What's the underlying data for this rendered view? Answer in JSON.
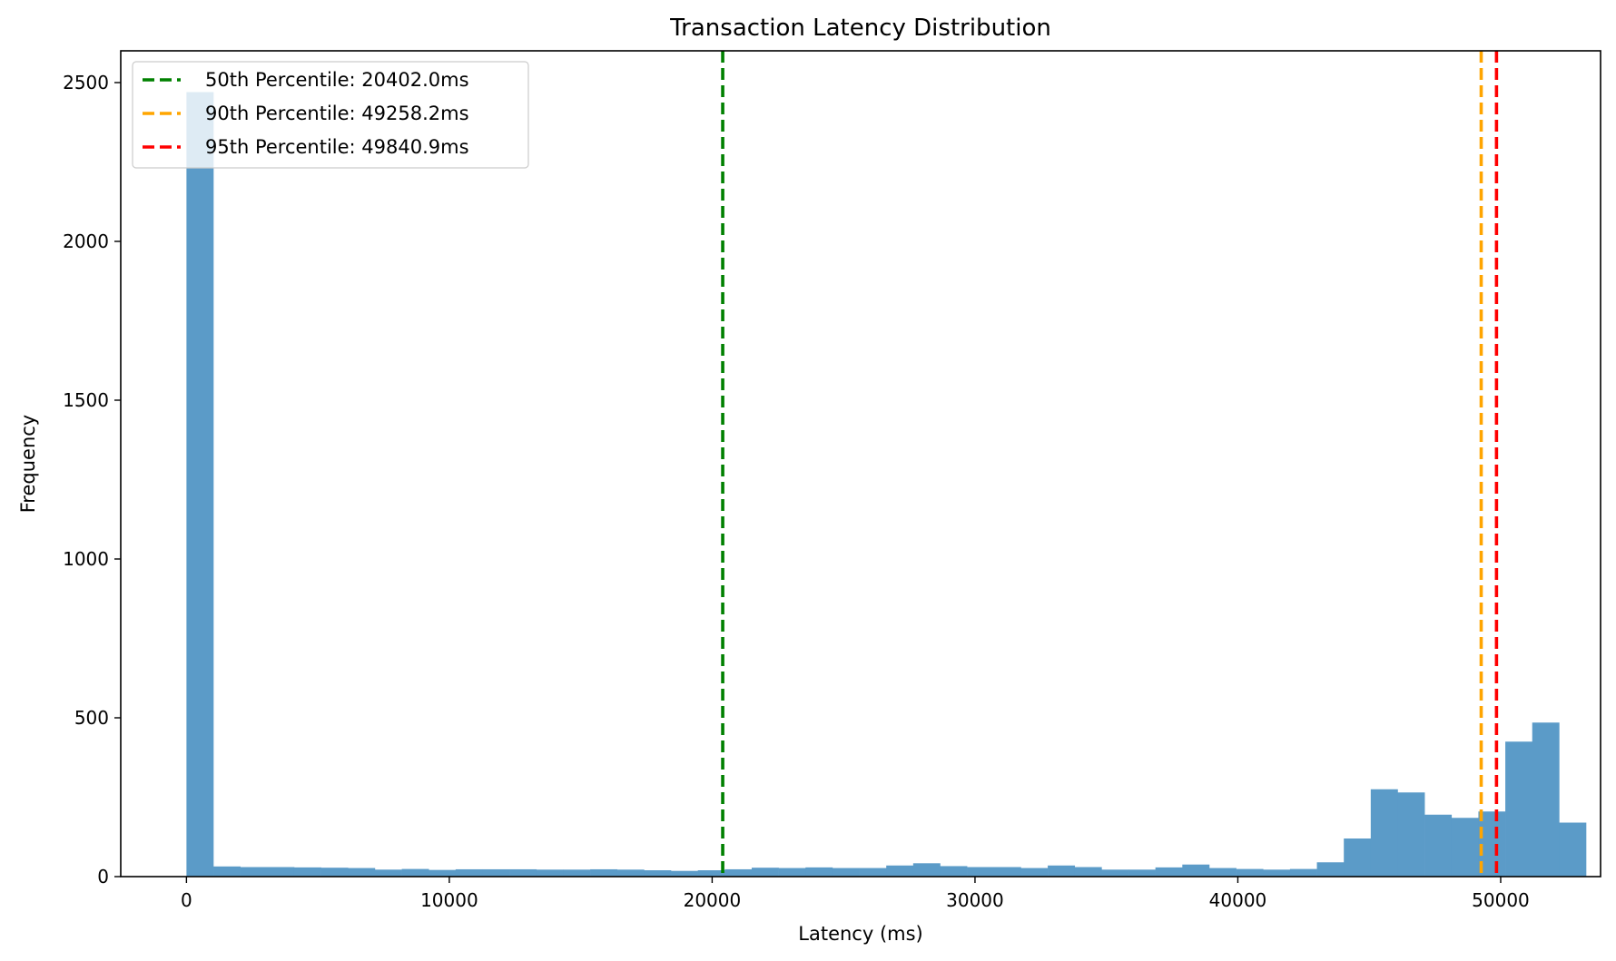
{
  "chart_data": {
    "type": "bar",
    "title": "Transaction Latency Distribution",
    "xlabel": "Latency (ms)",
    "ylabel": "Frequency",
    "xlim": [
      -2500,
      53800
    ],
    "ylim": [
      0,
      2600
    ],
    "xticks": [
      0,
      10000,
      20000,
      30000,
      40000,
      50000
    ],
    "yticks": [
      0,
      500,
      1000,
      1500,
      2000,
      2500
    ],
    "grid": false,
    "bar_color": "#5b9bc8",
    "bins": {
      "start": 0,
      "width": 1024,
      "counts": [
        2470,
        32,
        30,
        30,
        29,
        28,
        27,
        22,
        24,
        21,
        23,
        23,
        23,
        22,
        22,
        23,
        22,
        20,
        18,
        20,
        23,
        28,
        27,
        29,
        27,
        27,
        35,
        42,
        33,
        30,
        30,
        27,
        35,
        30,
        22,
        22,
        29,
        38,
        27,
        24,
        22,
        24,
        45,
        120,
        275,
        265,
        195,
        185,
        205,
        425,
        485,
        170
      ]
    },
    "legend": {
      "placement": "upper left",
      "entries": [
        {
          "label": "50th Percentile: 20402.0ms",
          "color": "#008000",
          "value": 20402.0
        },
        {
          "label": "90th Percentile: 49258.2ms",
          "color": "#ffa500",
          "value": 49258.2
        },
        {
          "label": "95th Percentile: 49840.9ms",
          "color": "#ff0000",
          "value": 49840.9
        }
      ]
    }
  }
}
